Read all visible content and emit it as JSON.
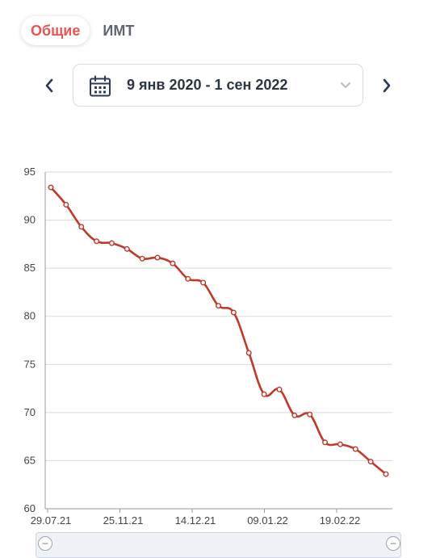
{
  "tabs": [
    {
      "label": "Общие",
      "active": true
    },
    {
      "label": "ИМТ",
      "active": false
    }
  ],
  "date_range": {
    "label": "9 янв 2020 - 1 сен 2022"
  },
  "icons": {
    "prev": "chevron-left-icon",
    "next": "chevron-right-icon",
    "calendar": "calendar-icon",
    "dropdown": "chevron-down-icon"
  },
  "colors": {
    "accent": "#e85454",
    "line": "#c0392b",
    "nav": "#2b3a5c"
  },
  "chart_data": {
    "type": "line",
    "title": "",
    "xlabel": "",
    "ylabel": "",
    "ylim": [
      60,
      95
    ],
    "yticks": [
      60,
      65,
      70,
      75,
      80,
      85,
      90,
      95
    ],
    "xtick_labels": [
      "29.07.21",
      "25.11.21",
      "14.12.21",
      "09.01.22",
      "19.02.22"
    ],
    "grid": true,
    "series": [
      {
        "values": [
          93.4,
          91.6,
          89.3,
          87.8,
          87.6,
          87.0,
          86.0,
          86.1,
          85.5,
          83.9,
          83.5,
          81.1,
          80.4,
          76.2,
          71.9,
          72.4,
          69.7,
          69.8,
          66.9,
          66.7,
          66.2,
          64.9,
          63.6
        ]
      }
    ]
  }
}
